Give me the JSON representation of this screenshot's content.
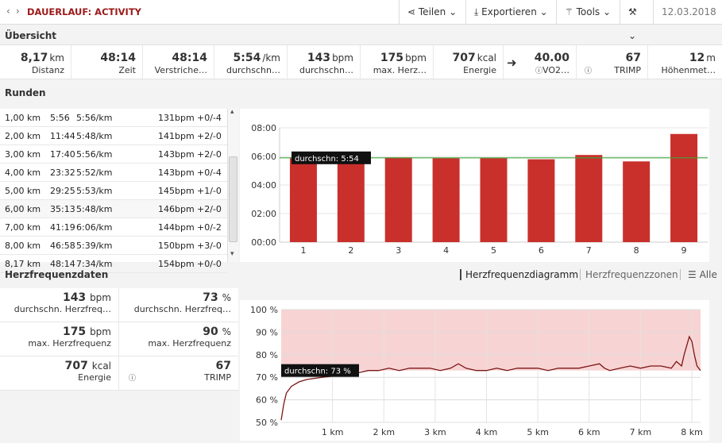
{
  "header": {
    "title": "DAUERLAUF: ACTIVITY",
    "buttons": [
      "Teilen",
      "Exportieren",
      "Tools"
    ],
    "date": "12.03.2018"
  },
  "overview": {
    "heading": "Übersicht",
    "cells": [
      {
        "value": "8,17",
        "unit": "km",
        "label": "Distanz"
      },
      {
        "value": "48:14",
        "unit": "",
        "label": "Zeit"
      },
      {
        "value": "48:14",
        "unit": "",
        "label": "Verstriche…"
      },
      {
        "value": "5:54",
        "unit": "/km",
        "label": "durchschn…"
      },
      {
        "value": "143",
        "unit": "bpm",
        "label": "durchschn…"
      },
      {
        "value": "175",
        "unit": "bpm",
        "label": "max. Herz…"
      },
      {
        "value": "707",
        "unit": "kcal",
        "label": "Energie"
      },
      {
        "value": "40.00",
        "unit": "",
        "label": "VO2…"
      },
      {
        "value": "67",
        "unit": "",
        "label": "TRIMP"
      },
      {
        "value": "12",
        "unit": "m",
        "label": "Höhenmet…"
      }
    ]
  },
  "rounds": {
    "heading": "Runden",
    "rows": [
      {
        "dist": "1,00 km",
        "time": "5:56",
        "pace": "5:56/km",
        "hr": "131bpm",
        "diff": "+0/-4"
      },
      {
        "dist": "2,00 km",
        "time": "11:44",
        "pace": "5:48/km",
        "hr": "141bpm",
        "diff": "+2/-0"
      },
      {
        "dist": "3,00 km",
        "time": "17:40",
        "pace": "5:56/km",
        "hr": "143bpm",
        "diff": "+2/-0"
      },
      {
        "dist": "4,00 km",
        "time": "23:32",
        "pace": "5:52/km",
        "hr": "143bpm",
        "diff": "+0/-4"
      },
      {
        "dist": "5,00 km",
        "time": "29:25",
        "pace": "5:53/km",
        "hr": "145bpm",
        "diff": "+1/-0"
      },
      {
        "dist": "6,00 km",
        "time": "35:13",
        "pace": "5:48/km",
        "hr": "146bpm",
        "diff": "+2/-0"
      },
      {
        "dist": "7,00 km",
        "time": "41:19",
        "pace": "6:06/km",
        "hr": "144bpm",
        "diff": "+0/-2"
      },
      {
        "dist": "8,00 km",
        "time": "46:58",
        "pace": "5:39/km",
        "hr": "150bpm",
        "diff": "+3/-0"
      },
      {
        "dist": "8,17 km",
        "time": "48:14",
        "pace": "7:34/km",
        "hr": "154bpm",
        "diff": "+0/-0"
      }
    ]
  },
  "heart": {
    "heading": "Herzfrequenzdaten",
    "tabs": [
      "Herzfrequenzdiagramm",
      "Herzfrequenzzonen",
      "Alle"
    ],
    "cells": [
      {
        "value": "143",
        "unit": "bpm",
        "label": "durchschn. Herzfreq…"
      },
      {
        "value": "73",
        "unit": "%",
        "label": "durchschn. Herzfreq…"
      },
      {
        "value": "175",
        "unit": "bpm",
        "label": "max. Herzfrequenz"
      },
      {
        "value": "90",
        "unit": "%",
        "label": "max. Herzfrequenz"
      },
      {
        "value": "707",
        "unit": "kcal",
        "label": "Energie"
      },
      {
        "value": "67",
        "unit": "",
        "label": "TRIMP"
      }
    ]
  },
  "colors": {
    "accent": "#9b1a1a",
    "bar": "#c9302c",
    "avg_line": "#3aa53a",
    "zone": "#f8d3d3"
  },
  "chart_data": [
    {
      "type": "bar",
      "categories": [
        "1",
        "2",
        "3",
        "4",
        "5",
        "6",
        "7",
        "8",
        "9"
      ],
      "values": [
        5.93,
        5.8,
        5.93,
        5.87,
        5.88,
        5.8,
        6.1,
        5.65,
        7.57
      ],
      "yticks": [
        "00:00",
        "02:00",
        "04:00",
        "06:00",
        "08:00"
      ],
      "ylim": [
        0,
        8
      ],
      "annotation": "durchschn: 5:54",
      "avg": 5.9
    },
    {
      "type": "line",
      "yticks": [
        "50 %",
        "60 %",
        "70 %",
        "80 %",
        "90 %",
        "100 %"
      ],
      "xticks": [
        "1 km",
        "2 km",
        "3 km",
        "4 km",
        "5 km",
        "6 km",
        "7 km",
        "8 km"
      ],
      "ylim": [
        50,
        100
      ],
      "xlim": [
        0,
        8.17
      ],
      "annotation": "durchschn: 73 %",
      "avg": 73,
      "x": [
        0,
        0.05,
        0.1,
        0.2,
        0.35,
        0.5,
        0.8,
        1.2,
        1.5,
        1.7,
        1.9,
        2.1,
        2.3,
        2.5,
        2.7,
        2.9,
        3.1,
        3.3,
        3.45,
        3.6,
        3.8,
        4.0,
        4.2,
        4.4,
        4.6,
        4.8,
        5.0,
        5.2,
        5.4,
        5.6,
        5.8,
        6.0,
        6.2,
        6.3,
        6.4,
        6.6,
        6.8,
        7.0,
        7.2,
        7.4,
        7.6,
        7.7,
        7.8,
        7.85,
        7.9,
        7.95,
        8.0,
        8.05,
        8.1,
        8.17
      ],
      "y": [
        51,
        58,
        63,
        66,
        68,
        69,
        70,
        71,
        72,
        73,
        73,
        74,
        73,
        74,
        74,
        74,
        73,
        74,
        76,
        74,
        73,
        73,
        74,
        73,
        74,
        74,
        74,
        73,
        74,
        74,
        74,
        75,
        76,
        74,
        73,
        74,
        75,
        74,
        75,
        75,
        74,
        77,
        75,
        80,
        84,
        88,
        86,
        80,
        75,
        73
      ]
    }
  ]
}
